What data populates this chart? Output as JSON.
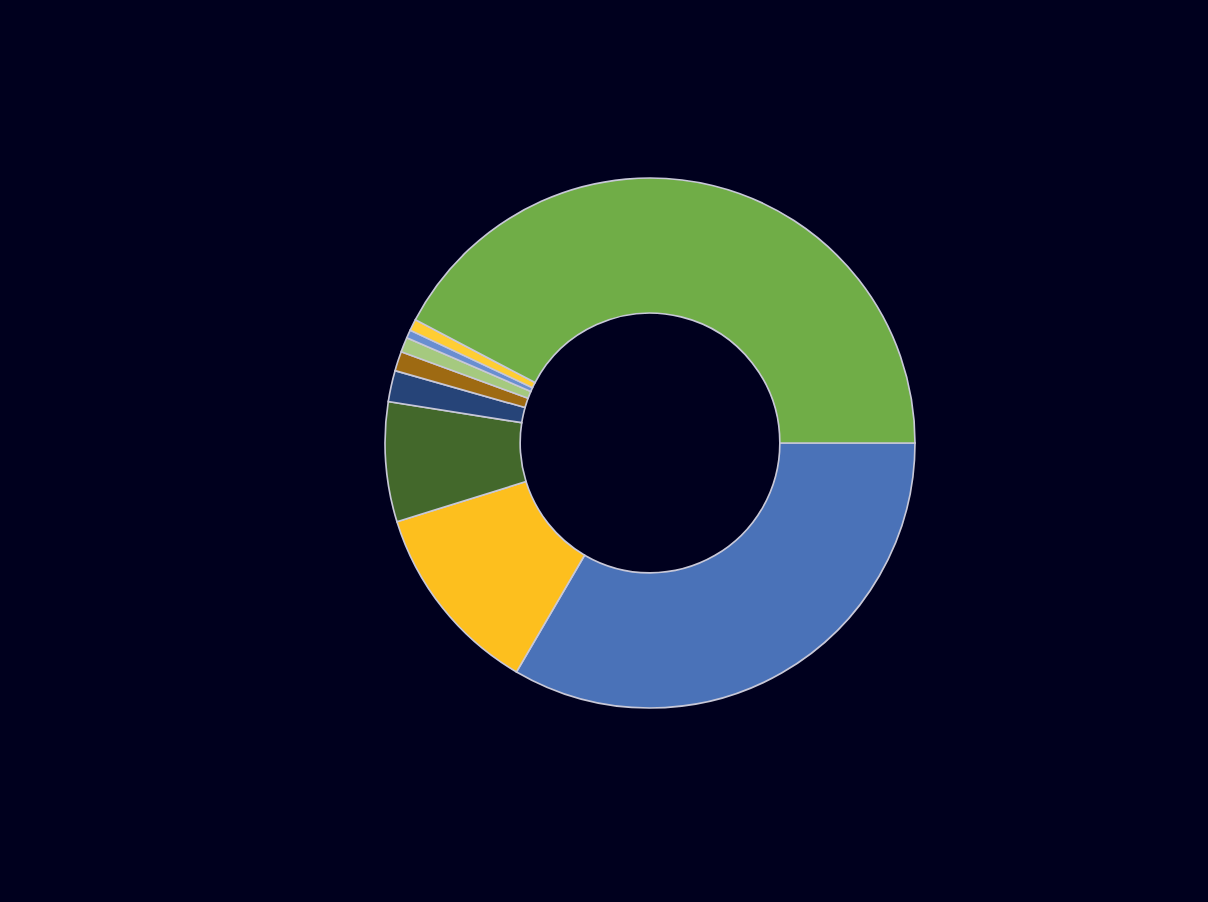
{
  "chart_data": {
    "type": "donut",
    "categories": [
      null,
      null,
      null,
      null,
      null,
      null,
      null,
      null,
      null
    ],
    "values": [
      33.4,
      11.8,
      7.3,
      1.9,
      1.2,
      0.9,
      0.5,
      0.7,
      42.3
    ],
    "colors": [
      "#4a72b8",
      "#fdbf1e",
      "#43682b",
      "#264478",
      "#9e6a12",
      "#a5c97f",
      "#698ed0",
      "#ffcd33",
      "#70ad47"
    ],
    "legend": false
  }
}
